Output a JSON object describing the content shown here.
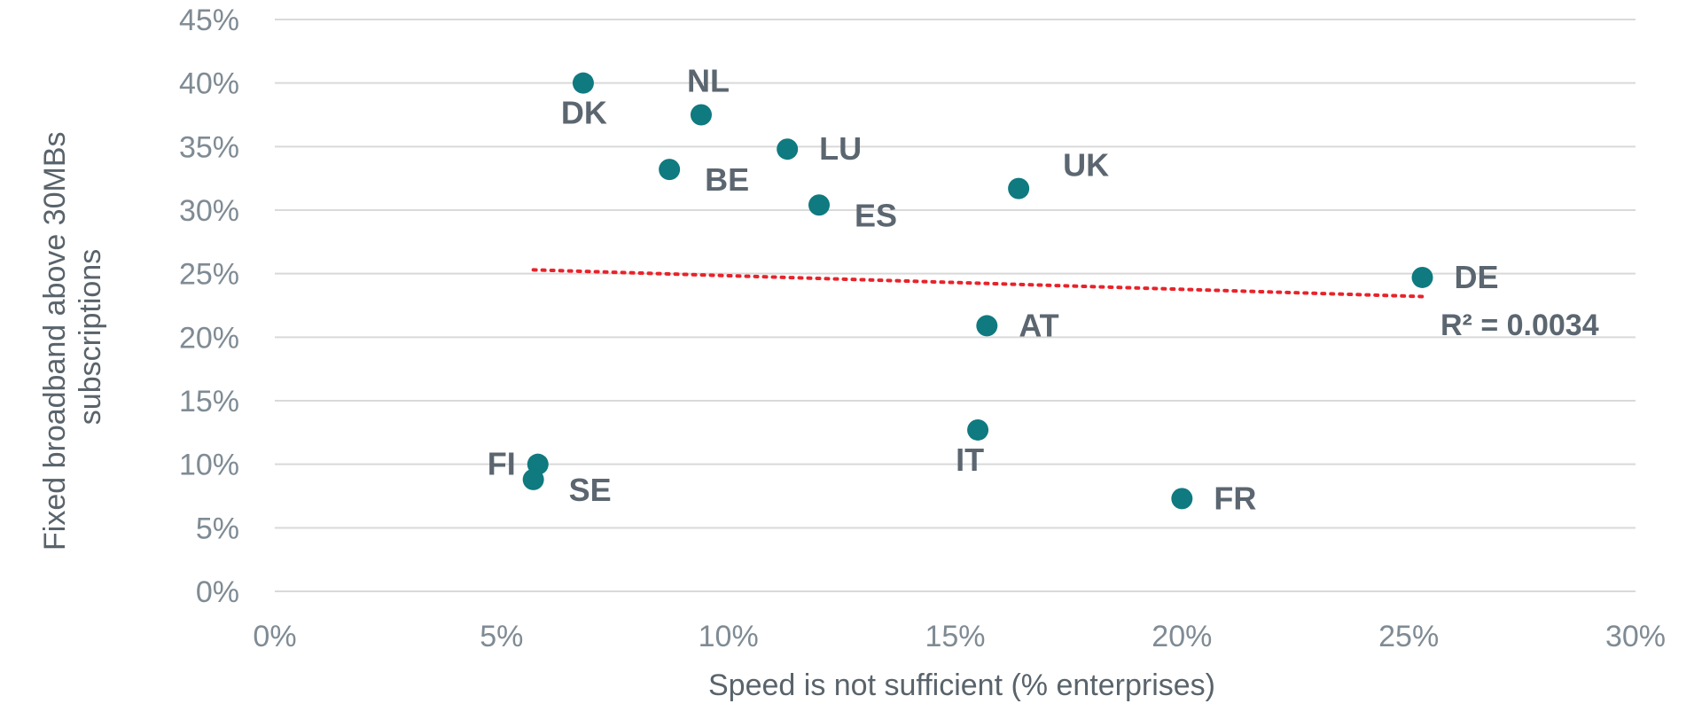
{
  "chart_data": {
    "type": "scatter",
    "xlabel": "Speed is not sufficient (% enterprises)",
    "ylabel_lines": [
      "Fixed broadband above 30MBs",
      "subscriptions"
    ],
    "xlim": [
      0,
      30
    ],
    "ylim": [
      0,
      45
    ],
    "xticks": [
      0,
      5,
      10,
      15,
      20,
      25,
      30
    ],
    "yticks": [
      0,
      5,
      10,
      15,
      20,
      25,
      30,
      35,
      40,
      45
    ],
    "xtick_labels": [
      "0%",
      "5%",
      "10%",
      "15%",
      "20%",
      "25%",
      "30%"
    ],
    "ytick_labels": [
      "0%",
      "5%",
      "10%",
      "15%",
      "20%",
      "25%",
      "30%",
      "35%",
      "40%",
      "45%"
    ],
    "grid": "horizontal",
    "marker_color": "#0f7a80",
    "trendline_color": "#e8232a",
    "points": [
      {
        "label": "DK",
        "x": 6.8,
        "y": 40.0,
        "label_pos": "below-left"
      },
      {
        "label": "NL",
        "x": 9.4,
        "y": 37.5,
        "label_pos": "above"
      },
      {
        "label": "LU",
        "x": 11.3,
        "y": 34.8,
        "label_pos": "right"
      },
      {
        "label": "BE",
        "x": 8.7,
        "y": 33.2,
        "label_pos": "right-below"
      },
      {
        "label": "ES",
        "x": 12.0,
        "y": 30.4,
        "label_pos": "right-below"
      },
      {
        "label": "UK",
        "x": 16.4,
        "y": 31.7,
        "label_pos": "right-above"
      },
      {
        "label": "DE",
        "x": 25.3,
        "y": 24.7,
        "label_pos": "right"
      },
      {
        "label": "AT",
        "x": 15.7,
        "y": 20.9,
        "label_pos": "right"
      },
      {
        "label": "IT",
        "x": 15.5,
        "y": 12.7,
        "label_pos": "below-left"
      },
      {
        "label": "FI",
        "x": 5.8,
        "y": 10.0,
        "label_pos": "left"
      },
      {
        "label": "SE",
        "x": 5.7,
        "y": 8.8,
        "label_pos": "right-below"
      },
      {
        "label": "FR",
        "x": 20.0,
        "y": 7.3,
        "label_pos": "right"
      }
    ],
    "trendline": {
      "x_start": 5.7,
      "y_start": 25.3,
      "x_end": 25.3,
      "y_end": 23.2,
      "r2_label": "R² = 0.0034"
    }
  }
}
